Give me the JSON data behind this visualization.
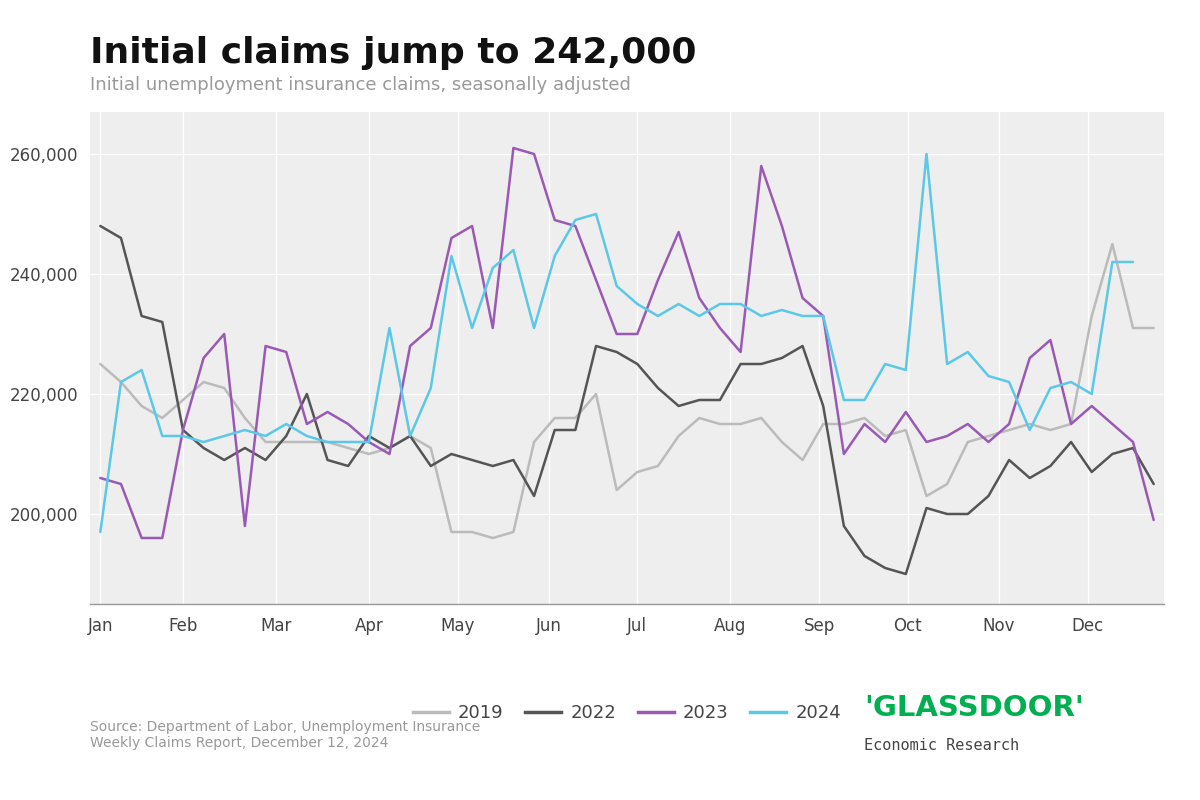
{
  "title": "Initial claims jump to 242,000",
  "subtitle": "Initial unemployment insurance claims, seasonally adjusted",
  "source": "Source: Department of Labor, Unemployment Insurance\nWeekly Claims Report, December 12, 2024",
  "ylim": [
    185000,
    267000
  ],
  "yticks": [
    200000,
    220000,
    240000,
    260000
  ],
  "background_color": "#ffffff",
  "plot_bg_color": "#eeeeee",
  "grid_color": "#ffffff",
  "series": {
    "2019": {
      "color": "#bbbbbb",
      "lw": 1.8,
      "data": [
        225000,
        222000,
        218000,
        216000,
        219000,
        222000,
        221000,
        216000,
        212000,
        212000,
        212000,
        212000,
        211000,
        210000,
        211000,
        213000,
        211000,
        197000,
        197000,
        196000,
        197000,
        212000,
        216000,
        216000,
        220000,
        204000,
        207000,
        208000,
        213000,
        216000,
        215000,
        215000,
        216000,
        212000,
        209000,
        215000,
        215000,
        216000,
        213000,
        214000,
        203000,
        205000,
        212000,
        213000,
        214000,
        215000,
        214000,
        215000,
        233000,
        245000,
        231000,
        231000
      ]
    },
    "2022": {
      "color": "#555555",
      "lw": 1.8,
      "data": [
        248000,
        246000,
        233000,
        232000,
        214000,
        211000,
        209000,
        211000,
        209000,
        213000,
        220000,
        209000,
        208000,
        213000,
        211000,
        213000,
        208000,
        210000,
        209000,
        208000,
        209000,
        203000,
        214000,
        214000,
        228000,
        227000,
        225000,
        221000,
        218000,
        219000,
        219000,
        225000,
        225000,
        226000,
        228000,
        218000,
        198000,
        193000,
        191000,
        190000,
        201000,
        200000,
        200000,
        203000,
        209000,
        206000,
        208000,
        212000,
        207000,
        210000,
        211000,
        205000
      ]
    },
    "2023": {
      "color": "#9b59b6",
      "lw": 1.8,
      "data": [
        206000,
        205000,
        196000,
        196000,
        214000,
        226000,
        230000,
        198000,
        228000,
        227000,
        215000,
        217000,
        215000,
        212000,
        210000,
        228000,
        231000,
        246000,
        248000,
        231000,
        261000,
        260000,
        249000,
        248000,
        239000,
        230000,
        230000,
        239000,
        247000,
        236000,
        231000,
        227000,
        258000,
        248000,
        236000,
        233000,
        210000,
        215000,
        212000,
        217000,
        212000,
        213000,
        215000,
        212000,
        215000,
        226000,
        229000,
        215000,
        218000,
        215000,
        212000,
        199000
      ]
    },
    "2024": {
      "color": "#5bc8e8",
      "lw": 1.8,
      "data": [
        197000,
        222000,
        224000,
        213000,
        213000,
        212000,
        213000,
        214000,
        213000,
        215000,
        213000,
        212000,
        212000,
        212000,
        231000,
        213000,
        221000,
        243000,
        231000,
        241000,
        244000,
        231000,
        243000,
        249000,
        250000,
        238000,
        235000,
        233000,
        235000,
        233000,
        235000,
        235000,
        233000,
        234000,
        233000,
        233000,
        219000,
        219000,
        225000,
        224000,
        260000,
        225000,
        227000,
        223000,
        222000,
        214000,
        221000,
        222000,
        220000,
        242000,
        242000,
        null
      ]
    }
  },
  "month_labels": [
    "Jan",
    "Feb",
    "Mar",
    "Apr",
    "May",
    "Jun",
    "Jul",
    "Aug",
    "Sep",
    "Oct",
    "Nov",
    "Dec"
  ],
  "month_ticks": [
    0,
    4,
    8.5,
    13,
    17.3,
    21.7,
    26.0,
    30.5,
    34.8,
    39.1,
    43.5,
    47.8
  ],
  "n_points": 52,
  "legend_order": [
    "2019",
    "2022",
    "2023",
    "2024"
  ],
  "title_fontsize": 26,
  "subtitle_fontsize": 13,
  "source_fontsize": 10,
  "tick_fontsize": 12,
  "legend_fontsize": 13
}
